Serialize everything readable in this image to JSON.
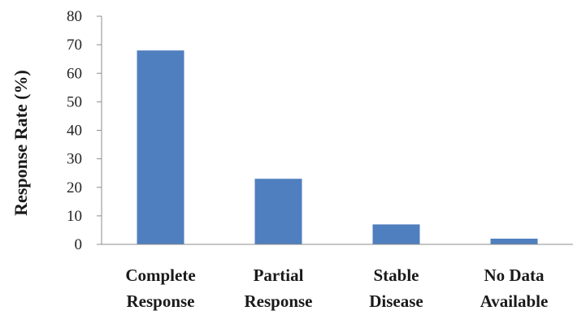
{
  "chart_data": {
    "type": "bar",
    "title": "",
    "xlabel": "",
    "ylabel": "Response Rate (%)",
    "ylim": [
      0,
      80
    ],
    "yticks": [
      0,
      10,
      20,
      30,
      40,
      50,
      60,
      70,
      80
    ],
    "categories": [
      [
        "Complete",
        "Response"
      ],
      [
        "Partial",
        "Response"
      ],
      [
        "Stable",
        "Disease"
      ],
      [
        "No Data",
        "Available"
      ]
    ],
    "values": [
      68,
      23,
      7,
      2
    ],
    "bar_color": "#4f7fbe",
    "grid": false,
    "legend": "none"
  }
}
